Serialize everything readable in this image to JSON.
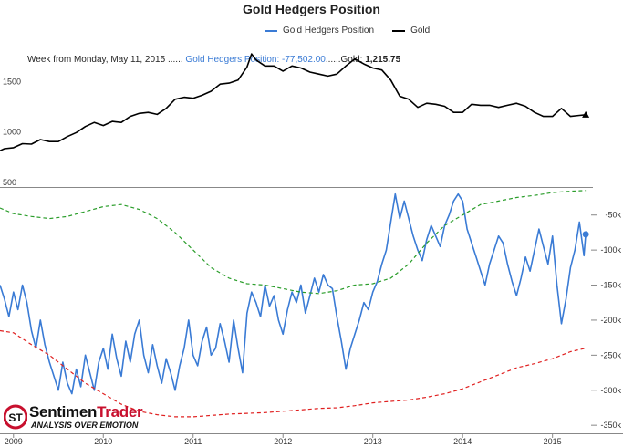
{
  "chart_data": {
    "type": "line",
    "title": "Gold Hedgers Position",
    "legend": {
      "placement": "top-center",
      "items": [
        {
          "name": "Gold Hedgers Position",
          "color": "#3a7bd5"
        },
        {
          "name": "Gold",
          "color": "#000000"
        }
      ]
    },
    "tooltip": {
      "date_text": "Week from Monday, May 11, 2015 ......",
      "hedgers_text": "Gold Hedgers Position: -77,502.00",
      "separator": "......",
      "gold_label": "Gold: ",
      "gold_value": "1,215.75"
    },
    "x_ticks": [
      "2009",
      "2010",
      "2011",
      "2012",
      "2013",
      "2014",
      "2015"
    ],
    "x_range": [
      2008.85,
      2015.45
    ],
    "upper_panel": {
      "y_ticks": [
        "1500",
        "1000",
        "500"
      ],
      "y_tick_values": [
        1500,
        1000,
        500
      ],
      "y_range": [
        500,
        1920
      ],
      "series": [
        {
          "name": "Gold",
          "color": "#000000",
          "style": "solid",
          "x": [
            2008.85,
            2008.9,
            2009.0,
            2009.1,
            2009.2,
            2009.3,
            2009.4,
            2009.5,
            2009.6,
            2009.7,
            2009.8,
            2009.9,
            2010.0,
            2010.1,
            2010.2,
            2010.3,
            2010.4,
            2010.5,
            2010.6,
            2010.7,
            2010.8,
            2010.9,
            2011.0,
            2011.1,
            2011.2,
            2011.3,
            2011.4,
            2011.5,
            2011.6,
            2011.65,
            2011.7,
            2011.8,
            2011.9,
            2012.0,
            2012.1,
            2012.2,
            2012.3,
            2012.4,
            2012.5,
            2012.6,
            2012.7,
            2012.8,
            2012.9,
            2013.0,
            2013.1,
            2013.2,
            2013.3,
            2013.4,
            2013.5,
            2013.6,
            2013.7,
            2013.8,
            2013.9,
            2014.0,
            2014.1,
            2014.2,
            2014.3,
            2014.4,
            2014.5,
            2014.6,
            2014.7,
            2014.8,
            2014.9,
            2015.0,
            2015.1,
            2015.2,
            2015.3,
            2015.37
          ],
          "y": [
            860,
            880,
            890,
            930,
            925,
            970,
            950,
            950,
            1000,
            1040,
            1100,
            1140,
            1110,
            1150,
            1140,
            1200,
            1230,
            1240,
            1220,
            1280,
            1370,
            1390,
            1380,
            1410,
            1450,
            1520,
            1530,
            1560,
            1690,
            1820,
            1760,
            1700,
            1700,
            1650,
            1700,
            1680,
            1640,
            1620,
            1600,
            1620,
            1700,
            1770,
            1720,
            1680,
            1660,
            1560,
            1400,
            1370,
            1290,
            1330,
            1320,
            1300,
            1240,
            1240,
            1320,
            1310,
            1310,
            1290,
            1310,
            1330,
            1300,
            1240,
            1200,
            1200,
            1280,
            1200,
            1210,
            1216
          ]
        }
      ]
    },
    "lower_panel": {
      "y_ticks": [
        "-50k",
        "-100k",
        "-150k",
        "-200k",
        "-250k",
        "-300k",
        "-350k"
      ],
      "y_tick_values": [
        -50000,
        -100000,
        -150000,
        -200000,
        -250000,
        -300000,
        -350000
      ],
      "y_range": [
        -355000,
        -10000
      ],
      "series": [
        {
          "name": "Gold Hedgers Position",
          "color": "#3a7bd5",
          "style": "solid",
          "x": [
            2008.85,
            2008.9,
            2008.95,
            2009.0,
            2009.05,
            2009.1,
            2009.15,
            2009.2,
            2009.25,
            2009.3,
            2009.35,
            2009.4,
            2009.45,
            2009.5,
            2009.55,
            2009.6,
            2009.65,
            2009.7,
            2009.75,
            2009.8,
            2009.85,
            2009.9,
            2009.95,
            2010.0,
            2010.05,
            2010.1,
            2010.15,
            2010.2,
            2010.25,
            2010.3,
            2010.35,
            2010.4,
            2010.45,
            2010.5,
            2010.55,
            2010.6,
            2010.65,
            2010.7,
            2010.75,
            2010.8,
            2010.85,
            2010.9,
            2010.95,
            2011.0,
            2011.05,
            2011.1,
            2011.15,
            2011.2,
            2011.25,
            2011.3,
            2011.35,
            2011.4,
            2011.45,
            2011.5,
            2011.55,
            2011.6,
            2011.65,
            2011.7,
            2011.75,
            2011.8,
            2011.85,
            2011.9,
            2011.95,
            2012.0,
            2012.05,
            2012.1,
            2012.15,
            2012.2,
            2012.25,
            2012.3,
            2012.35,
            2012.4,
            2012.45,
            2012.5,
            2012.55,
            2012.6,
            2012.65,
            2012.7,
            2012.75,
            2012.8,
            2012.85,
            2012.9,
            2012.95,
            2013.0,
            2013.05,
            2013.1,
            2013.15,
            2013.2,
            2013.25,
            2013.3,
            2013.35,
            2013.4,
            2013.45,
            2013.5,
            2013.55,
            2013.6,
            2013.65,
            2013.7,
            2013.75,
            2013.8,
            2013.85,
            2013.9,
            2013.95,
            2014.0,
            2014.05,
            2014.1,
            2014.15,
            2014.2,
            2014.25,
            2014.3,
            2014.35,
            2014.4,
            2014.45,
            2014.5,
            2014.55,
            2014.6,
            2014.65,
            2014.7,
            2014.75,
            2014.8,
            2014.85,
            2014.9,
            2014.95,
            2015.0,
            2015.05,
            2015.1,
            2015.15,
            2015.2,
            2015.25,
            2015.3,
            2015.35,
            2015.37
          ],
          "y": [
            -150000,
            -170000,
            -195000,
            -160000,
            -185000,
            -150000,
            -175000,
            -215000,
            -240000,
            -200000,
            -235000,
            -260000,
            -280000,
            -300000,
            -260000,
            -290000,
            -305000,
            -270000,
            -295000,
            -250000,
            -275000,
            -300000,
            -260000,
            -240000,
            -270000,
            -220000,
            -255000,
            -280000,
            -230000,
            -260000,
            -220000,
            -200000,
            -250000,
            -275000,
            -235000,
            -265000,
            -290000,
            -255000,
            -275000,
            -300000,
            -265000,
            -240000,
            -200000,
            -250000,
            -265000,
            -230000,
            -210000,
            -250000,
            -240000,
            -205000,
            -230000,
            -260000,
            -200000,
            -240000,
            -275000,
            -190000,
            -160000,
            -175000,
            -195000,
            -150000,
            -180000,
            -165000,
            -200000,
            -220000,
            -185000,
            -160000,
            -175000,
            -150000,
            -190000,
            -165000,
            -140000,
            -160000,
            -135000,
            -150000,
            -155000,
            -195000,
            -230000,
            -270000,
            -240000,
            -220000,
            -200000,
            -175000,
            -185000,
            -160000,
            -145000,
            -120000,
            -100000,
            -60000,
            -20000,
            -55000,
            -30000,
            -55000,
            -80000,
            -100000,
            -115000,
            -85000,
            -65000,
            -80000,
            -95000,
            -65000,
            -50000,
            -30000,
            -20000,
            -30000,
            -70000,
            -90000,
            -110000,
            -130000,
            -150000,
            -120000,
            -100000,
            -80000,
            -90000,
            -120000,
            -145000,
            -165000,
            -140000,
            -110000,
            -130000,
            -100000,
            -70000,
            -95000,
            -120000,
            -80000,
            -150000,
            -205000,
            -170000,
            -125000,
            -100000,
            -60000,
            -108000,
            -77502
          ]
        },
        {
          "name": "",
          "color": "#2a9d2a",
          "style": "dashed",
          "x": [
            2008.85,
            2009.0,
            2009.2,
            2009.4,
            2009.6,
            2009.8,
            2010.0,
            2010.2,
            2010.4,
            2010.6,
            2010.8,
            2011.0,
            2011.2,
            2011.4,
            2011.6,
            2011.8,
            2012.0,
            2012.2,
            2012.4,
            2012.6,
            2012.8,
            2013.0,
            2013.2,
            2013.4,
            2013.6,
            2013.8,
            2014.0,
            2014.2,
            2014.4,
            2014.6,
            2014.8,
            2015.0,
            2015.2,
            2015.37
          ],
          "y": [
            -40000,
            -48000,
            -52000,
            -55000,
            -52000,
            -45000,
            -38000,
            -35000,
            -42000,
            -55000,
            -75000,
            -100000,
            -125000,
            -140000,
            -148000,
            -150000,
            -155000,
            -160000,
            -162000,
            -158000,
            -150000,
            -148000,
            -140000,
            -120000,
            -90000,
            -65000,
            -50000,
            -35000,
            -30000,
            -25000,
            -22000,
            -18000,
            -16000,
            -15000
          ]
        },
        {
          "name": "",
          "color": "#e02020",
          "style": "dashed",
          "x": [
            2008.85,
            2009.0,
            2009.2,
            2009.4,
            2009.6,
            2009.8,
            2010.0,
            2010.2,
            2010.4,
            2010.6,
            2010.8,
            2011.0,
            2011.2,
            2011.4,
            2011.6,
            2011.8,
            2012.0,
            2012.2,
            2012.4,
            2012.6,
            2012.8,
            2013.0,
            2013.2,
            2013.4,
            2013.6,
            2013.8,
            2014.0,
            2014.2,
            2014.4,
            2014.6,
            2014.8,
            2015.0,
            2015.2,
            2015.37
          ],
          "y": [
            -215000,
            -218000,
            -235000,
            -250000,
            -270000,
            -290000,
            -305000,
            -320000,
            -330000,
            -335000,
            -338000,
            -338000,
            -336000,
            -334000,
            -333000,
            -332000,
            -330000,
            -328000,
            -326000,
            -325000,
            -322000,
            -318000,
            -316000,
            -314000,
            -310000,
            -305000,
            -298000,
            -288000,
            -278000,
            -268000,
            -262000,
            -255000,
            -245000,
            -240000
          ]
        }
      ],
      "markers": [
        {
          "series": "Gold Hedgers Position",
          "x": 2015.37,
          "y": -77502,
          "shape": "circle",
          "color": "#3a7bd5"
        }
      ]
    },
    "upper_markers": [
      {
        "series": "Gold",
        "x": 2015.37,
        "y": 1216,
        "shape": "triangle",
        "color": "#000000"
      }
    ],
    "grid": false
  },
  "branding": {
    "logo_name_black": "Sentimen",
    "logo_name_red": "Trader",
    "logo_tagline": "ANALYSIS OVER EMOTION",
    "logo_mark": "ST"
  }
}
